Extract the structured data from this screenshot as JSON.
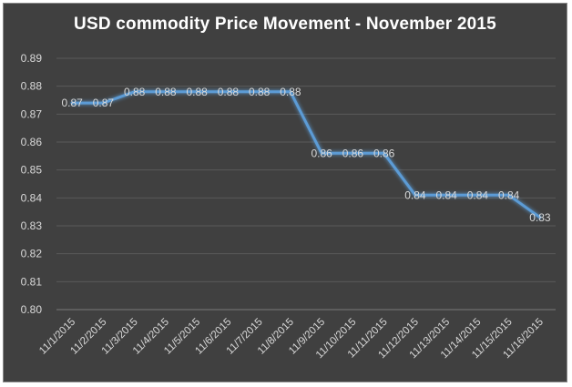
{
  "chart_data": {
    "type": "line",
    "title": "USD commodity Price Movement - November 2015",
    "xlabel": "",
    "ylabel": "",
    "categories": [
      "11/1/2015",
      "11/2/2015",
      "11/3/2015",
      "11/4/2015",
      "11/5/2015",
      "11/6/2015",
      "11/7/2015",
      "11/8/2015",
      "11/9/2015",
      "11/10/2015",
      "11/11/2015",
      "11/12/2015",
      "11/13/2015",
      "11/14/2015",
      "11/15/2015",
      "11/16/2015"
    ],
    "values": [
      0.874,
      0.874,
      0.878,
      0.878,
      0.878,
      0.878,
      0.878,
      0.878,
      0.856,
      0.856,
      0.856,
      0.841,
      0.841,
      0.841,
      0.841,
      0.833
    ],
    "data_labels": [
      "0.87",
      "0.87",
      "0.88",
      "0.88",
      "0.88",
      "0.88",
      "0.88",
      "0.88",
      "0.86",
      "0.86",
      "0.86",
      "0.84",
      "0.84",
      "0.84",
      "0.84",
      "0.83"
    ],
    "ylim": [
      0.8,
      0.89
    ],
    "yticks": [
      "0.80",
      "0.81",
      "0.82",
      "0.83",
      "0.84",
      "0.85",
      "0.86",
      "0.87",
      "0.88",
      "0.89"
    ],
    "grid": true,
    "legend": "none",
    "colors": {
      "background": "#404040",
      "line": "#5b9bd5",
      "text": "#d9d9d9",
      "grid": "#5a5a5a"
    }
  }
}
